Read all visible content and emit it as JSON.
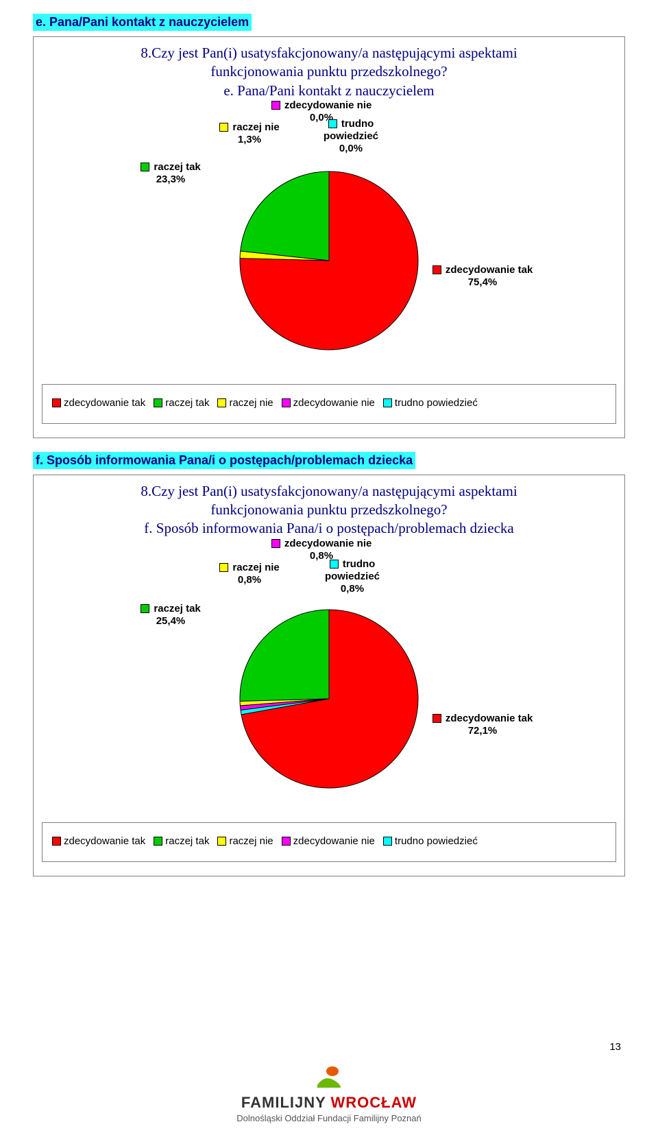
{
  "section_e": {
    "heading": "e.  Pana/Pani kontakt z nauczycielem",
    "chart_title_line1": "8.Czy jest Pan(i) usatysfakcjonowany/a następującymi aspektami",
    "chart_title_line2": "funkcjonowania punktu przedszkolnego?",
    "chart_title_line3": "e. Pana/Pani kontakt z nauczycielem",
    "pie": {
      "type": "pie",
      "slices": [
        {
          "label": "zdecydowanie tak",
          "pct": "75,4%",
          "value": 75.4,
          "color": "#ff0000"
        },
        {
          "label": "raczej tak",
          "pct": "23,3%",
          "value": 23.3,
          "color": "#00cc00"
        },
        {
          "label": "raczej nie",
          "pct": "1,3%",
          "value": 1.3,
          "color": "#ffff00"
        },
        {
          "label": "zdecydowanie nie",
          "pct": "0,0%",
          "value": 0.0,
          "color": "#ff00ff"
        },
        {
          "label": "trudno powiedzieć",
          "pct": "0,0%",
          "value": 0.0,
          "color": "#00ffff"
        }
      ],
      "radius": 130,
      "stroke": "#000000",
      "background": "#ffffff"
    }
  },
  "section_f": {
    "heading": "f.  Sposób informowania Pana/i o postępach/problemach dziecka",
    "chart_title_line1": "8.Czy jest Pan(i) usatysfakcjonowany/a następującymi aspektami",
    "chart_title_line2": "funkcjonowania punktu przedszkolnego?",
    "chart_title_line3": "f. Sposób informowania Pana/i o postępach/problemach dziecka",
    "pie": {
      "type": "pie",
      "slices": [
        {
          "label": "zdecydowanie tak",
          "pct": "72,1%",
          "value": 72.1,
          "color": "#ff0000"
        },
        {
          "label": "raczej tak",
          "pct": "25,4%",
          "value": 25.4,
          "color": "#00cc00"
        },
        {
          "label": "raczej nie",
          "pct": "0,8%",
          "value": 0.8,
          "color": "#ffff00"
        },
        {
          "label": "zdecydowanie nie",
          "pct": "0,8%",
          "value": 0.8,
          "color": "#ff00ff"
        },
        {
          "label": "trudno powiedzieć",
          "pct": "0,8%",
          "value": 0.8,
          "color": "#00ffff"
        }
      ],
      "radius": 130,
      "stroke": "#000000",
      "background": "#ffffff"
    }
  },
  "legend_items": [
    {
      "label": "zdecydowanie tak",
      "color": "#ff0000"
    },
    {
      "label": "raczej tak",
      "color": "#00cc00"
    },
    {
      "label": "raczej nie",
      "color": "#ffff00"
    },
    {
      "label": "zdecydowanie nie",
      "color": "#ff00ff"
    },
    {
      "label": "trudno powiedzieć",
      "color": "#00ffff"
    }
  ],
  "footer": {
    "brand_a": "FAMILIJNY ",
    "brand_b": "WROCŁAW",
    "subtitle": "Dolnośląski Oddział Fundacji Familijny Poznań",
    "page_number": "13"
  },
  "label_text": {
    "zdec_nie": "zdecydowanie nie",
    "raczej_nie": "raczej nie",
    "trudno": "trudno",
    "powiedziec": "powiedzieć",
    "raczej_tak": "raczej tak",
    "zdec_tak": "zdecydowanie tak"
  }
}
